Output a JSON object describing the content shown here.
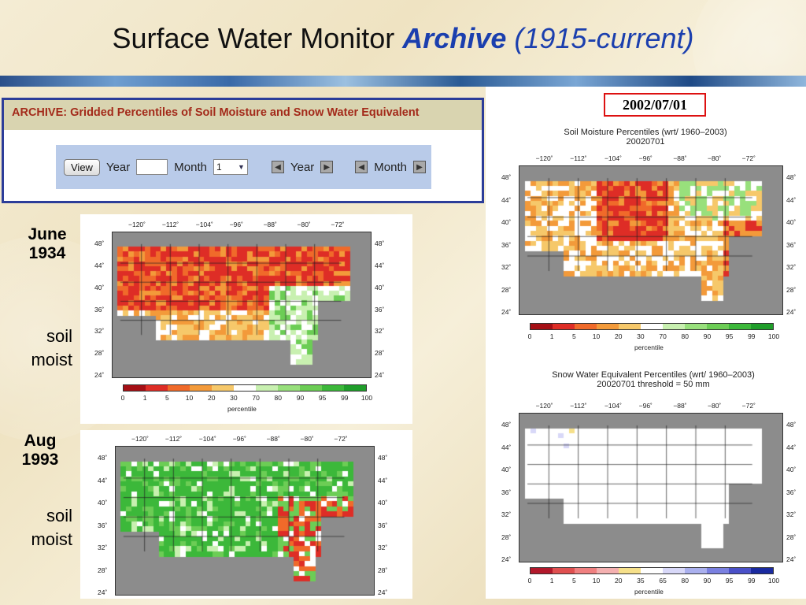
{
  "slide": {
    "title_main": "Surface Water Monitor ",
    "title_archive": "Archive",
    "title_range": " (1915-current)"
  },
  "archive_panel": {
    "heading": "ARCHIVE: Gridded Percentiles of Soil Moisture and Snow Water Equivalent",
    "view_label": "View",
    "year_label": "Year",
    "year_value": "",
    "month_label": "Month",
    "month_value": "1",
    "step_year_label": "Year",
    "step_month_label": "Month"
  },
  "labels": {
    "june1934_l1": "June",
    "june1934_l2": "1934",
    "aug1993_l1": "Aug",
    "aug1993_l2": "1993",
    "soil1_l1": "soil",
    "soil1_l2": "moist",
    "soil2_l1": "soil",
    "soil2_l2": "moist"
  },
  "right": {
    "date_box": "2002/07/01",
    "sm_title_l1": "Soil Moisture Percentiles (wrt/ 1960–2003)",
    "sm_title_l2": "20020701",
    "swe_title_l1": "Snow Water Equivalent Percentiles (wrt/ 1960–2003)",
    "swe_title_l2": "20020701     threshold = 50 mm"
  },
  "axes": {
    "lon_ticks": [
      "−120˚",
      "−112˚",
      "−104˚",
      "−96˚",
      "−88˚",
      "−80˚",
      "−72˚"
    ],
    "lat_ticks": [
      "48˚",
      "44˚",
      "40˚",
      "36˚",
      "32˚",
      "28˚",
      "24˚"
    ],
    "legend_label": "percentile"
  },
  "legend_sm": {
    "values": [
      "0",
      "1",
      "5",
      "10",
      "20",
      "30",
      "70",
      "80",
      "90",
      "95",
      "99",
      "100"
    ],
    "colors": [
      "#a50f15",
      "#de2d26",
      "#f06a2a",
      "#f39a3a",
      "#f6c86a",
      "#ffffff",
      "#c8f0b0",
      "#98e07c",
      "#6ccd55",
      "#3cb83a",
      "#1f9e2a"
    ]
  },
  "legend_swe": {
    "values": [
      "0",
      "1",
      "5",
      "10",
      "20",
      "35",
      "65",
      "80",
      "90",
      "95",
      "99",
      "100"
    ],
    "colors": [
      "#b2182b",
      "#e05050",
      "#f08080",
      "#f4b0b0",
      "#f6e08a",
      "#ffffff",
      "#d8d8f8",
      "#aab0ee",
      "#7a80e0",
      "#4a50c8",
      "#1a2aa0"
    ]
  },
  "colors": {
    "accent_blue": "#1b3fae",
    "archive_heading": "#a32a1a",
    "date_box_border": "#dd1111"
  }
}
